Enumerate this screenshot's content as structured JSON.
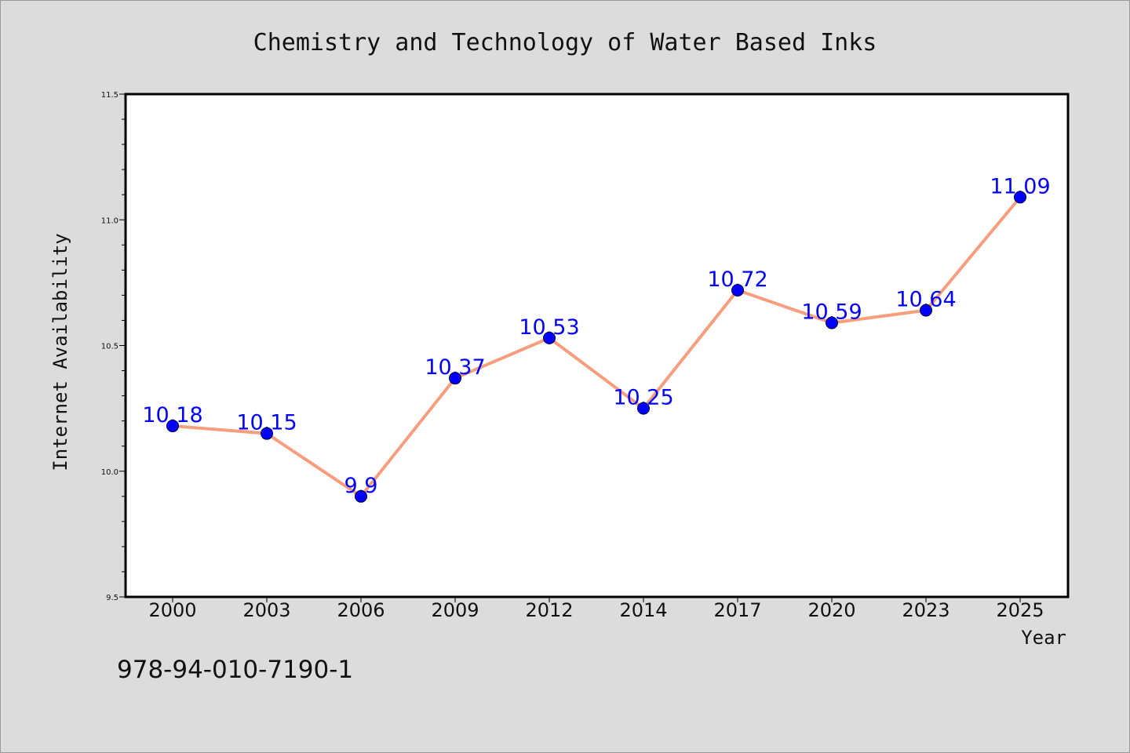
{
  "footer_text": "978-94-010-7190-1",
  "chart_data": {
    "type": "line",
    "title": "Chemistry and Technology of Water Based Inks",
    "xlabel": "Year",
    "ylabel": "Internet Availability",
    "categories": [
      "2000",
      "2003",
      "2006",
      "2009",
      "2012",
      "2014",
      "2017",
      "2020",
      "2023",
      "2025"
    ],
    "values": [
      10.18,
      10.15,
      9.9,
      10.37,
      10.53,
      10.25,
      10.72,
      10.59,
      10.64,
      11.09
    ],
    "data_labels": [
      "10.18",
      "10.15",
      "9.9",
      "10.37",
      "10.53",
      "10.25",
      "10.72",
      "10.59",
      "10.64",
      "11.09"
    ],
    "ylim": [
      9.5,
      11.5
    ],
    "yticks": [
      9.5,
      10.0,
      10.5,
      11.0,
      11.5
    ],
    "ytick_labels": [
      "9.5",
      "10.0",
      "10.5",
      "11.0",
      "11.5"
    ],
    "grid": false,
    "legend": "none",
    "colors": {
      "line": "#f79e7e",
      "marker": "#0000ff",
      "data_label": "#0000ff",
      "plot_background": "#ffffff",
      "figure_background": "#dcdcdc"
    }
  }
}
